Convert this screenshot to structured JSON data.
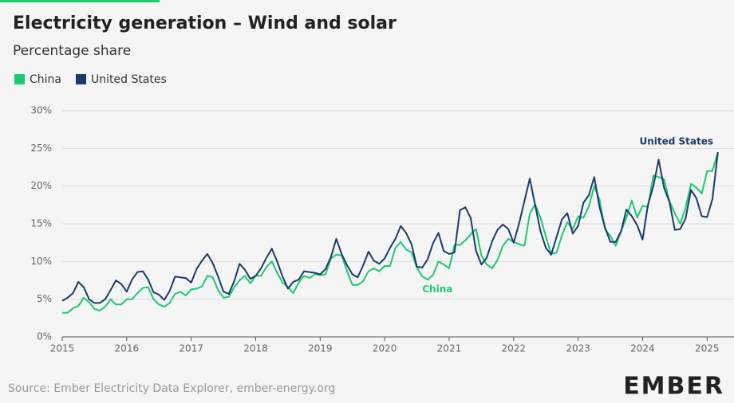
{
  "chart_data": {
    "type": "line",
    "title": "Electricity generation – Wind and solar",
    "subtitle": "Percentage share",
    "source": "Source: Ember Electricity Data Explorer, ember-energy.org",
    "brand": "EMBER",
    "x": [
      2015,
      2015.083,
      2015.167,
      2015.25,
      2015.333,
      2015.417,
      2015.5,
      2015.583,
      2015.667,
      2015.75,
      2015.833,
      2015.917,
      2016,
      2016.083,
      2016.167,
      2016.25,
      2016.333,
      2016.417,
      2016.5,
      2016.583,
      2016.667,
      2016.75,
      2016.833,
      2016.917,
      2017,
      2017.083,
      2017.167,
      2017.25,
      2017.333,
      2017.417,
      2017.5,
      2017.583,
      2017.667,
      2017.75,
      2017.833,
      2017.917,
      2018,
      2018.083,
      2018.167,
      2018.25,
      2018.333,
      2018.417,
      2018.5,
      2018.583,
      2018.667,
      2018.75,
      2018.833,
      2018.917,
      2019,
      2019.083,
      2019.167,
      2019.25,
      2019.333,
      2019.417,
      2019.5,
      2019.583,
      2019.667,
      2019.75,
      2019.833,
      2019.917,
      2020,
      2020.083,
      2020.167,
      2020.25,
      2020.333,
      2020.417,
      2020.5,
      2020.583,
      2020.667,
      2020.75,
      2020.833,
      2020.917,
      2021,
      2021.083,
      2021.167,
      2021.25,
      2021.333,
      2021.417,
      2021.5,
      2021.583,
      2021.667,
      2021.75,
      2021.833,
      2021.917,
      2022,
      2022.083,
      2022.167,
      2022.25,
      2022.333,
      2022.417,
      2022.5,
      2022.583,
      2022.667,
      2022.75,
      2022.833,
      2022.917,
      2023,
      2023.083,
      2023.167,
      2023.25,
      2023.333,
      2023.417,
      2023.5,
      2023.583,
      2023.667,
      2023.75,
      2023.833,
      2023.917,
      2024,
      2024.083,
      2024.167,
      2024.25,
      2024.333,
      2024.417,
      2024.5,
      2024.583,
      2024.667,
      2024.75,
      2024.833,
      2024.917,
      2025,
      2025.083,
      2025.167
    ],
    "series": [
      {
        "name": "China",
        "color": "#1ec96f",
        "values": [
          3.2,
          3.2,
          3.8,
          4.1,
          5.2,
          4.6,
          3.7,
          3.5,
          4.0,
          5.0,
          4.3,
          4.3,
          5.0,
          5.0,
          5.8,
          6.5,
          6.6,
          5.0,
          4.3,
          4.0,
          4.5,
          5.7,
          6.0,
          5.5,
          6.3,
          6.4,
          6.7,
          8.1,
          7.9,
          6.2,
          5.2,
          5.3,
          6.6,
          7.5,
          8.1,
          7.1,
          8.1,
          8.1,
          9.3,
          10.0,
          8.5,
          7.2,
          6.6,
          5.8,
          7.2,
          8.1,
          7.8,
          8.3,
          8.2,
          8.3,
          10.4,
          10.9,
          10.8,
          8.7,
          6.9,
          6.9,
          7.4,
          8.7,
          9.1,
          8.7,
          9.4,
          9.4,
          11.8,
          12.6,
          11.6,
          11.2,
          9.2,
          8.0,
          7.6,
          8.2,
          10.0,
          9.6,
          9.1,
          12.2,
          12.2,
          12.8,
          13.6,
          14.3,
          10.8,
          9.6,
          9.1,
          10.2,
          12.1,
          13.0,
          12.6,
          12.3,
          12.1,
          16.3,
          17.6,
          15.8,
          13.3,
          11.0,
          11.2,
          13.5,
          15.2,
          14.3,
          16.0,
          15.8,
          17.3,
          20.0,
          18.2,
          14.3,
          13.4,
          12.1,
          14.0,
          15.8,
          18.1,
          15.8,
          17.4,
          17.2,
          21.4,
          21.2,
          20.9,
          18.0,
          16.4,
          15.0,
          17.1,
          20.3,
          19.8,
          19.0,
          22.0,
          22.0,
          24.5
        ]
      },
      {
        "name": "United States",
        "color": "#1b3a6b",
        "values": [
          4.8,
          5.2,
          5.8,
          7.3,
          6.6,
          5.0,
          4.5,
          4.5,
          5.0,
          6.2,
          7.5,
          7.0,
          6.0,
          7.6,
          8.6,
          8.7,
          7.6,
          5.9,
          5.6,
          4.9,
          6.1,
          8.0,
          7.9,
          7.8,
          7.2,
          9.0,
          10.1,
          11.0,
          9.8,
          8.0,
          6.0,
          5.7,
          7.4,
          9.7,
          8.9,
          7.7,
          8.1,
          9.1,
          10.5,
          11.7,
          10.0,
          8.0,
          6.4,
          7.3,
          7.6,
          8.7,
          8.6,
          8.5,
          8.3,
          9.0,
          10.6,
          13.0,
          11.0,
          9.5,
          8.3,
          7.9,
          9.5,
          11.3,
          10.1,
          9.7,
          10.4,
          11.8,
          13.0,
          14.7,
          13.8,
          12.3,
          9.3,
          9.2,
          10.3,
          12.4,
          13.8,
          11.4,
          11.0,
          11.2,
          16.8,
          17.2,
          15.8,
          11.4,
          9.6,
          10.5,
          12.7,
          14.2,
          14.9,
          14.3,
          12.5,
          15.0,
          18.0,
          21.0,
          17.5,
          14.0,
          11.8,
          10.9,
          13.3,
          15.6,
          16.4,
          13.7,
          14.7,
          17.8,
          18.8,
          21.2,
          17.2,
          14.5,
          12.6,
          12.6,
          14.0,
          16.9,
          16.0,
          14.8,
          12.9,
          17.5,
          20.0,
          23.5,
          19.8,
          17.9,
          14.2,
          14.3,
          15.7,
          19.5,
          18.4,
          16.0,
          15.9,
          18.3,
          24.5
        ]
      }
    ],
    "xlim": [
      2015,
      2025.17
    ],
    "xticks": [
      2015,
      2016,
      2017,
      2018,
      2019,
      2020,
      2021,
      2022,
      2023,
      2024,
      2025
    ],
    "ylim": [
      0,
      30
    ],
    "yticks": [
      {
        "value": 0,
        "label": "0%"
      },
      {
        "value": 5,
        "label": "5%"
      },
      {
        "value": 10,
        "label": "10%"
      },
      {
        "value": 15,
        "label": "15%"
      },
      {
        "value": 20,
        "label": "20%"
      },
      {
        "value": 25,
        "label": "25%"
      },
      {
        "value": 30,
        "label": "30%"
      }
    ],
    "grid": true
  }
}
